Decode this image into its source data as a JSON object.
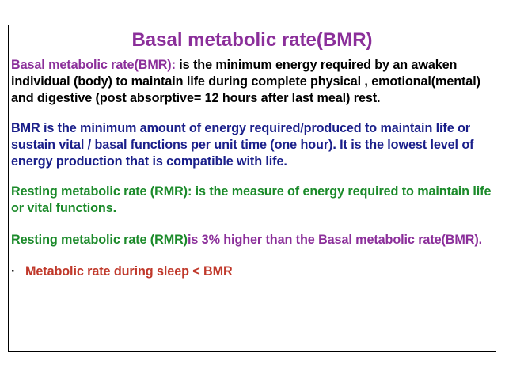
{
  "colors": {
    "purple": "#8b2f9a",
    "blue": "#1a1f8a",
    "green": "#1b8a2a",
    "red": "#c0392b",
    "black": "#000000"
  },
  "title": "Basal metabolic rate(BMR)",
  "paragraphs": {
    "p1_term": "Basal  metabolic rate(BMR):",
    "p1_body": " is the minimum energy required by an awaken individual (body) to maintain life during complete physical , emotional(mental) and digestive (post absorptive= 12 hours after last meal) rest.",
    "p2": "BMR is the minimum amount of energy required/produced to maintain life or sustain vital / basal functions per unit time (one hour). It is the lowest level of energy production that is compatible with life.",
    "p3": "Resting metabolic rate (RMR): is the measure of energy required to maintain life or vital functions.",
    "p4_term": "Resting metabolic rate (RMR)",
    "p4_body": "is 3% higher than the Basal metabolic rate(BMR).",
    "bullet_mark": "·",
    "bullet_text": "Metabolic rate during sleep < BMR"
  }
}
